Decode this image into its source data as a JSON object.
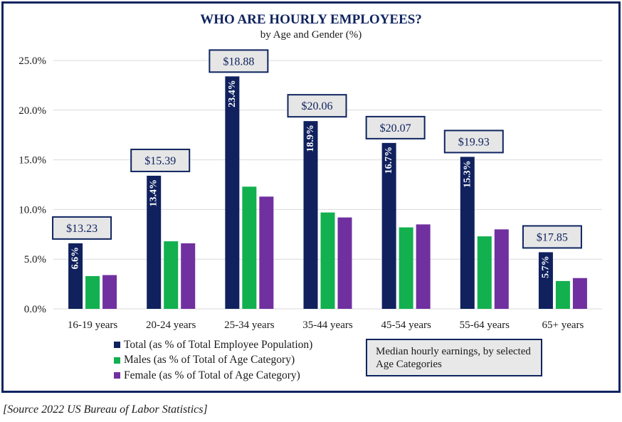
{
  "title": "WHO ARE HOURLY EMPLOYEES?",
  "subtitle": "by Age and Gender (%)",
  "note": "Median hourly earnings, by selected Age Categories",
  "source": "[Source 2022 US Bureau of Labor Statistics]",
  "colors": {
    "total": "#10215e",
    "males": "#12b04f",
    "female": "#7030a0",
    "frame": "#0f2460",
    "label_box_fill": "#e6e6e6"
  },
  "chart_data": {
    "type": "bar",
    "title": "WHO ARE HOURLY EMPLOYEES?",
    "subtitle": "by Age and Gender (%)",
    "categories": [
      "16-19 years",
      "20-24 years",
      "25-34 years",
      "35-44 years",
      "45-54 years",
      "55-64 years",
      "65+ years"
    ],
    "series": [
      {
        "name": "Total (as % of Total Employee Population)",
        "values": [
          6.6,
          13.4,
          23.4,
          18.9,
          16.7,
          15.3,
          5.7
        ],
        "labels": [
          "6.6%",
          "13.4%",
          "23.4%",
          "18.9%",
          "16.7%",
          "15.3%",
          "5.7%"
        ]
      },
      {
        "name": "Males (as % of Total of Age Category)",
        "values": [
          3.3,
          6.8,
          12.3,
          9.7,
          8.2,
          7.3,
          2.8
        ]
      },
      {
        "name": "Female (as % of Total of Age Category)",
        "values": [
          3.4,
          6.6,
          11.3,
          9.2,
          8.5,
          8.0,
          3.1
        ]
      }
    ],
    "median_hourly_earnings": [
      "$13.23",
      "$15.39",
      "$18.88",
      "$20.06",
      "$20.07",
      "$19.93",
      "$17.85"
    ],
    "ylim": [
      0,
      25
    ],
    "yticks": [
      0,
      5,
      10,
      15,
      20,
      25
    ],
    "ytick_labels": [
      "0.0%",
      "5.0%",
      "10.0%",
      "15.0%",
      "20.0%",
      "25.0%"
    ],
    "grid": true,
    "legend_position": "bottom-left"
  }
}
